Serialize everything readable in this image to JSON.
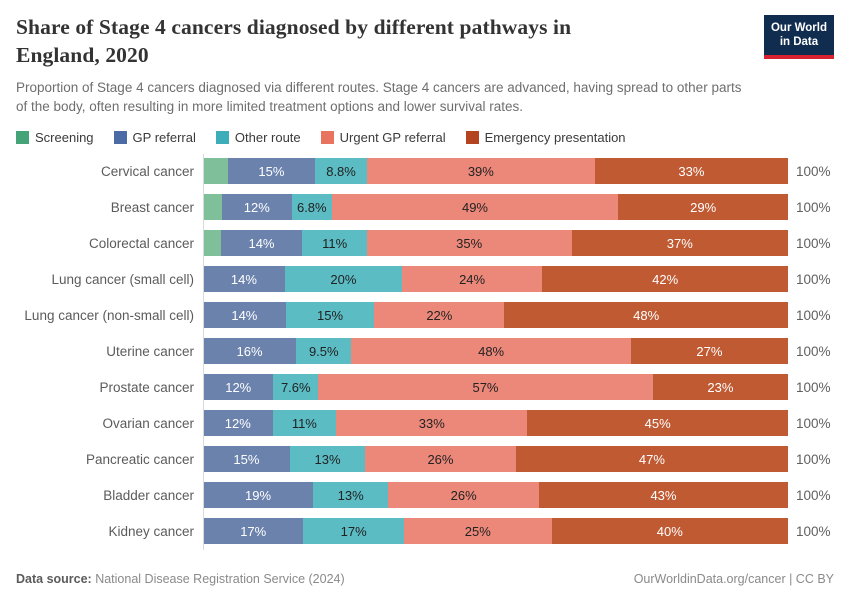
{
  "header": {
    "title": "Share of Stage 4 cancers diagnosed by different pathways in England, 2020",
    "subtitle": "Proportion of Stage 4 cancers diagnosed via different routes. Stage 4 cancers are advanced, having spread to other parts of the body, often resulting in more limited treatment options and lower survival rates.",
    "logo": {
      "line1": "Our World",
      "line2": "in Data",
      "bg": "#102d50",
      "accent": "#d8222f"
    }
  },
  "chart_data": {
    "type": "bar",
    "stacked": true,
    "orientation": "horizontal",
    "xlim": [
      0,
      100
    ],
    "total_label": "100%",
    "series": [
      {
        "name": "Screening",
        "legend_color": "#45a378",
        "bar_color": "#7fbf9a",
        "label_text_color": ""
      },
      {
        "name": "GP referral",
        "legend_color": "#4c6aa4",
        "bar_color": "#6b82ad",
        "label_text_color": "#ffffff"
      },
      {
        "name": "Other route",
        "legend_color": "#3cadb9",
        "bar_color": "#5bbcc4",
        "label_text_color": "#222222"
      },
      {
        "name": "Urgent GP referral",
        "legend_color": "#e8745f",
        "bar_color": "#ec8879",
        "label_text_color": "#222222"
      },
      {
        "name": "Emergency presentation",
        "legend_color": "#b44420",
        "bar_color": "#c05a33",
        "label_text_color": "#ffffff"
      }
    ],
    "categories": [
      "Cervical cancer",
      "Breast cancer",
      "Colorectal cancer",
      "Lung cancer (small cell)",
      "Lung cancer (non-small cell)",
      "Uterine cancer",
      "Prostate cancer",
      "Ovarian cancer",
      "Pancreatic cancer",
      "Bladder cancer",
      "Kidney cancer"
    ],
    "rows": [
      {
        "category": "Cervical cancer",
        "values": [
          4.2,
          15,
          8.8,
          39,
          33
        ],
        "labels": [
          "",
          "15%",
          "8.8%",
          "39%",
          "33%"
        ]
      },
      {
        "category": "Breast cancer",
        "values": [
          3.2,
          12,
          6.8,
          49,
          29
        ],
        "labels": [
          "",
          "12%",
          "6.8%",
          "49%",
          "29%"
        ]
      },
      {
        "category": "Colorectal cancer",
        "values": [
          3.0,
          14,
          11,
          35,
          37
        ],
        "labels": [
          "",
          "14%",
          "11%",
          "35%",
          "37%"
        ]
      },
      {
        "category": "Lung cancer (small cell)",
        "values": [
          0,
          14,
          20,
          24,
          42
        ],
        "labels": [
          "",
          "14%",
          "20%",
          "24%",
          "42%"
        ]
      },
      {
        "category": "Lung cancer (non-small cell)",
        "values": [
          0,
          14,
          15,
          22,
          48
        ],
        "labels": [
          "",
          "14%",
          "15%",
          "22%",
          "48%"
        ]
      },
      {
        "category": "Uterine cancer",
        "values": [
          0,
          16,
          9.5,
          48,
          27
        ],
        "labels": [
          "",
          "16%",
          "9.5%",
          "48%",
          "27%"
        ]
      },
      {
        "category": "Prostate cancer",
        "values": [
          0,
          12,
          7.6,
          57,
          23
        ],
        "labels": [
          "",
          "12%",
          "7.6%",
          "57%",
          "23%"
        ]
      },
      {
        "category": "Ovarian cancer",
        "values": [
          0,
          12,
          11,
          33,
          45
        ],
        "labels": [
          "",
          "12%",
          "11%",
          "33%",
          "45%"
        ]
      },
      {
        "category": "Pancreatic cancer",
        "values": [
          0,
          15,
          13,
          26,
          47
        ],
        "labels": [
          "",
          "15%",
          "13%",
          "26%",
          "47%"
        ]
      },
      {
        "category": "Bladder cancer",
        "values": [
          0,
          19,
          13,
          26,
          43
        ],
        "labels": [
          "",
          "19%",
          "13%",
          "26%",
          "43%"
        ]
      },
      {
        "category": "Kidney cancer",
        "values": [
          0,
          17,
          17,
          25,
          40
        ],
        "labels": [
          "",
          "17%",
          "17%",
          "25%",
          "40%"
        ]
      }
    ]
  },
  "footer": {
    "source_prefix": "Data source:",
    "source_text": " National Disease Registration Service (2024)",
    "right_text": "OurWorldinData.org/cancer | CC BY"
  }
}
